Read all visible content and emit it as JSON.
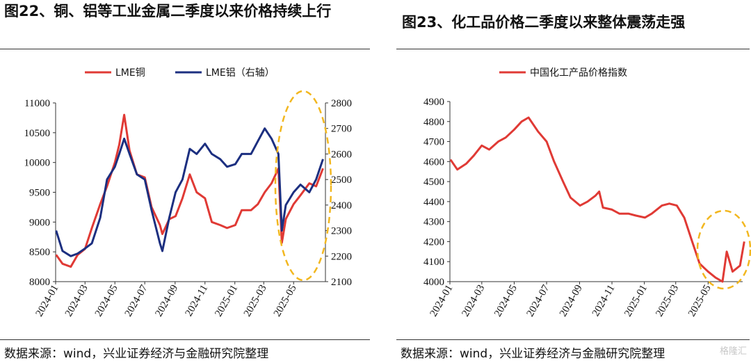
{
  "left": {
    "title": "图22、铜、铝等工业金属二季度以来价格持续上行",
    "source": "数据来源：wind，兴业证券经济与金融研究院整理"
  },
  "right": {
    "title": "图23、化工品价格二季度以来整体震荡走强",
    "source": "数据来源：wind，兴业证券经济与金融研究院整理",
    "watermark": "格隆汇"
  },
  "chart_data": [
    {
      "type": "line",
      "title": "图22、铜、铝等工业金属二季度以来价格持续上行",
      "x_ticks": [
        "2024-01",
        "2024-03",
        "2024-05",
        "2024-07",
        "2024-09",
        "2024-11",
        "2025-01",
        "2025-03",
        "2025-05"
      ],
      "ylim": [
        8000,
        11000
      ],
      "y_ticks": [
        8000,
        8500,
        9000,
        9500,
        10000,
        10500,
        11000
      ],
      "y2lim": [
        2100,
        2800
      ],
      "y2_ticks": [
        2100,
        2200,
        2300,
        2400,
        2500,
        2600,
        2700,
        2800
      ],
      "legend_position": "top",
      "colors": {
        "copper": "#e03a35",
        "aluminum": "#1c2f80",
        "highlight": "#f2b71f"
      },
      "series": [
        {
          "name": "LME铜",
          "axis": "left",
          "x": [
            "2024-01-02",
            "2024-01-15",
            "2024-02-01",
            "2024-02-15",
            "2024-03-01",
            "2024-03-15",
            "2024-04-01",
            "2024-04-15",
            "2024-05-01",
            "2024-05-10",
            "2024-05-20",
            "2024-05-31",
            "2024-06-15",
            "2024-07-01",
            "2024-07-15",
            "2024-08-01",
            "2024-08-06",
            "2024-08-20",
            "2024-09-02",
            "2024-09-16",
            "2024-10-01",
            "2024-10-15",
            "2024-11-01",
            "2024-11-15",
            "2024-12-02",
            "2024-12-16",
            "2025-01-02",
            "2025-01-15",
            "2025-02-03",
            "2025-02-17",
            "2025-03-03",
            "2025-03-17",
            "2025-03-31",
            "2025-04-07",
            "2025-04-15",
            "2025-05-01",
            "2025-05-15",
            "2025-06-02",
            "2025-06-16",
            "2025-06-30"
          ],
          "values": [
            8450,
            8300,
            8250,
            8450,
            8550,
            8900,
            9300,
            9600,
            10000,
            10300,
            10800,
            10200,
            9800,
            9750,
            9250,
            8950,
            8800,
            9050,
            9100,
            9400,
            9800,
            9500,
            9400,
            9000,
            8950,
            8900,
            8950,
            9200,
            9200,
            9300,
            9500,
            9650,
            9900,
            8650,
            9050,
            9300,
            9450,
            9650,
            9600,
            9900
          ]
        },
        {
          "name": "LME铝（右轴）",
          "axis": "right",
          "x": [
            "2024-01-02",
            "2024-01-15",
            "2024-02-01",
            "2024-02-15",
            "2024-03-01",
            "2024-03-15",
            "2024-04-01",
            "2024-04-15",
            "2024-05-01",
            "2024-05-10",
            "2024-05-20",
            "2024-05-31",
            "2024-06-15",
            "2024-07-01",
            "2024-07-15",
            "2024-08-01",
            "2024-08-06",
            "2024-08-20",
            "2024-09-02",
            "2024-09-16",
            "2024-10-01",
            "2024-10-15",
            "2024-11-01",
            "2024-11-15",
            "2024-12-02",
            "2024-12-16",
            "2025-01-02",
            "2025-01-15",
            "2025-02-03",
            "2025-02-17",
            "2025-03-03",
            "2025-03-17",
            "2025-03-31",
            "2025-04-07",
            "2025-04-15",
            "2025-05-01",
            "2025-05-15",
            "2025-06-02",
            "2025-06-16",
            "2025-06-30"
          ],
          "values": [
            2300,
            2220,
            2200,
            2210,
            2230,
            2250,
            2350,
            2500,
            2550,
            2600,
            2660,
            2600,
            2520,
            2500,
            2380,
            2250,
            2220,
            2350,
            2450,
            2500,
            2620,
            2600,
            2640,
            2600,
            2580,
            2550,
            2560,
            2600,
            2600,
            2650,
            2700,
            2660,
            2600,
            2300,
            2400,
            2450,
            2480,
            2450,
            2500,
            2580
          ]
        }
      ]
    },
    {
      "type": "line",
      "title": "图23、化工品价格二季度以来整体震荡走强",
      "x_ticks": [
        "2024-01",
        "2024-03",
        "2024-05",
        "2024-07",
        "2024-09",
        "2024-11",
        "2025-01",
        "2025-03",
        "2025-05"
      ],
      "ylim": [
        4000,
        4900
      ],
      "y_ticks": [
        4000,
        4100,
        4200,
        4300,
        4400,
        4500,
        4600,
        4700,
        4800,
        4900
      ],
      "legend_position": "top",
      "colors": {
        "index": "#e03a35",
        "highlight": "#f2b71f"
      },
      "series": [
        {
          "name": "中国化工产品价格指数",
          "x": [
            "2024-01-02",
            "2024-01-15",
            "2024-02-01",
            "2024-02-15",
            "2024-03-01",
            "2024-03-15",
            "2024-04-01",
            "2024-04-15",
            "2024-05-01",
            "2024-05-15",
            "2024-05-28",
            "2024-06-15",
            "2024-07-01",
            "2024-07-15",
            "2024-08-01",
            "2024-08-15",
            "2024-09-02",
            "2024-09-16",
            "2024-10-01",
            "2024-10-08",
            "2024-10-15",
            "2024-11-01",
            "2024-11-15",
            "2024-12-02",
            "2024-12-16",
            "2025-01-02",
            "2025-01-15",
            "2025-02-03",
            "2025-02-17",
            "2025-03-03",
            "2025-03-17",
            "2025-04-01",
            "2025-04-15",
            "2025-05-01",
            "2025-05-15",
            "2025-05-28",
            "2025-06-05",
            "2025-06-16",
            "2025-06-30",
            "2025-07-08"
          ],
          "values": [
            4610,
            4560,
            4590,
            4630,
            4680,
            4660,
            4700,
            4720,
            4760,
            4800,
            4820,
            4750,
            4700,
            4600,
            4500,
            4420,
            4380,
            4400,
            4430,
            4450,
            4370,
            4360,
            4340,
            4340,
            4330,
            4320,
            4340,
            4380,
            4390,
            4380,
            4320,
            4200,
            4090,
            4050,
            4020,
            4000,
            4150,
            4050,
            4080,
            4200
          ]
        }
      ]
    }
  ]
}
